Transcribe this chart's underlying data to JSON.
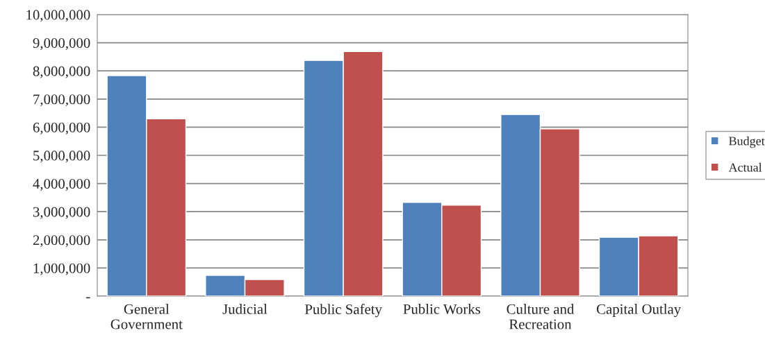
{
  "chart_data": {
    "type": "bar",
    "categories": [
      "General\nGovernment",
      "Judicial",
      "Public Safety",
      "Public Works",
      "Culture and\nRecreation",
      "Capital Outlay"
    ],
    "series": [
      {
        "name": "Budget",
        "color": "#4f81bd",
        "values": [
          7830000,
          740000,
          8370000,
          3330000,
          6450000,
          2090000
        ]
      },
      {
        "name": "Actual",
        "color": "#c0504d",
        "values": [
          6300000,
          590000,
          8690000,
          3230000,
          5940000,
          2140000
        ]
      }
    ],
    "ylim": [
      0,
      10000000
    ],
    "yticks": [
      {
        "value": 0,
        "label": "-"
      },
      {
        "value": 1000000,
        "label": "1,000,000"
      },
      {
        "value": 2000000,
        "label": "2,000,000"
      },
      {
        "value": 3000000,
        "label": "3,000,000"
      },
      {
        "value": 4000000,
        "label": "4,000,000"
      },
      {
        "value": 5000000,
        "label": "5,000,000"
      },
      {
        "value": 6000000,
        "label": "6,000,000"
      },
      {
        "value": 7000000,
        "label": "7,000,000"
      },
      {
        "value": 8000000,
        "label": "8,000,000"
      },
      {
        "value": 9000000,
        "label": "9,000,000"
      },
      {
        "value": 10000000,
        "label": "10,000,000"
      }
    ],
    "grid": "y",
    "legend": "right"
  }
}
